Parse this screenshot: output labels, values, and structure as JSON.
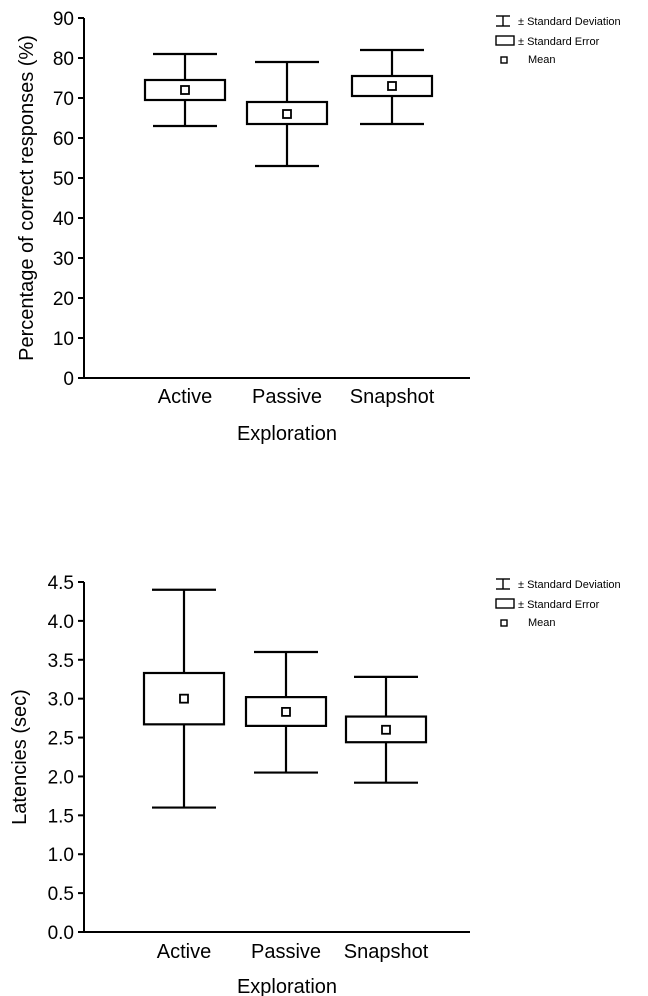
{
  "legend": {
    "sd_label": "± Standard Deviation",
    "se_label": "± Standard Error",
    "mean_label": "Mean"
  },
  "chart_data": [
    {
      "type": "box",
      "categories": [
        "Active",
        "Passive",
        "Snapshot"
      ],
      "xlabel": "Exploration",
      "ylabel": "Percentage of correct responses (%)",
      "ylim": [
        0,
        90
      ],
      "yticks": [
        0,
        10,
        20,
        30,
        40,
        50,
        60,
        70,
        80,
        90
      ],
      "ytick_labels": [
        "0",
        "10",
        "20",
        "30",
        "40",
        "50",
        "60",
        "70",
        "80",
        "90"
      ],
      "grid": false,
      "legend_position": "top-right",
      "series": [
        {
          "category": "Active",
          "mean": 72.0,
          "se_low": 69.5,
          "se_high": 74.5,
          "sd_low": 63.0,
          "sd_high": 81.0
        },
        {
          "category": "Passive",
          "mean": 66.0,
          "se_low": 63.5,
          "se_high": 69.0,
          "sd_low": 53.0,
          "sd_high": 79.0
        },
        {
          "category": "Snapshot",
          "mean": 73.0,
          "se_low": 70.5,
          "se_high": 75.5,
          "sd_low": 63.5,
          "sd_high": 82.0
        }
      ]
    },
    {
      "type": "box",
      "categories": [
        "Active",
        "Passive",
        "Snapshot"
      ],
      "xlabel": "Exploration",
      "ylabel": "Latencies (sec)",
      "ylim": [
        0,
        4.5
      ],
      "yticks": [
        0,
        0.5,
        1,
        1.5,
        2,
        2.5,
        3,
        3.5,
        4,
        4.5
      ],
      "ytick_labels": [
        "0.0",
        "0.5",
        "1.0",
        "1.5",
        "2.0",
        "2.5",
        "3.0",
        "3.5",
        "4.0",
        "4.5"
      ],
      "grid": false,
      "legend_position": "top-right",
      "series": [
        {
          "category": "Active",
          "mean": 3.0,
          "se_low": 2.67,
          "se_high": 3.33,
          "sd_low": 1.6,
          "sd_high": 4.4
        },
        {
          "category": "Passive",
          "mean": 2.83,
          "se_low": 2.65,
          "se_high": 3.02,
          "sd_low": 2.05,
          "sd_high": 3.6
        },
        {
          "category": "Snapshot",
          "mean": 2.6,
          "se_low": 2.44,
          "se_high": 2.77,
          "sd_low": 1.92,
          "sd_high": 3.28
        }
      ]
    }
  ]
}
